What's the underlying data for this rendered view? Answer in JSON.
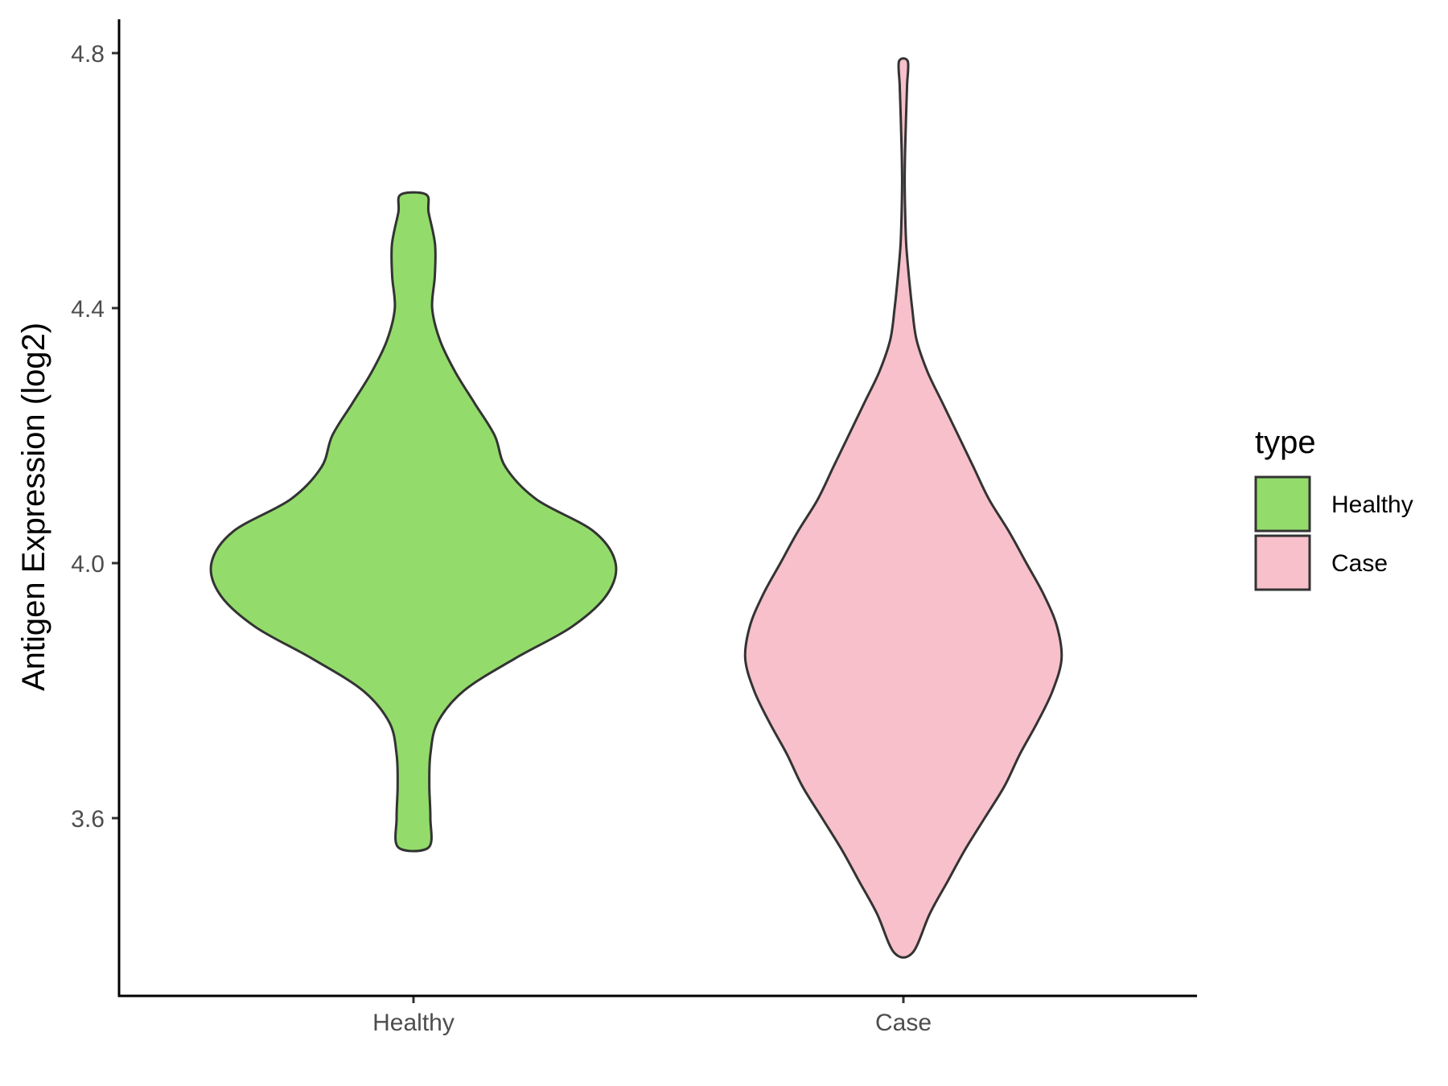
{
  "chart_data": {
    "type": "violin",
    "title": "",
    "xlabel": "",
    "ylabel": "Antigen Expression (log2)",
    "ylim": [
      3.3,
      4.86
    ],
    "yticks": [
      3.6,
      4.0,
      4.4,
      4.8
    ],
    "ytick_labels": [
      "3.6",
      "4.0",
      "4.4",
      "4.8"
    ],
    "categories": [
      "Healthy",
      "Case"
    ],
    "grid": false,
    "legend": {
      "title": "type",
      "placement": "right",
      "entries": [
        "Healthy",
        "Case"
      ]
    },
    "series": [
      {
        "name": "Healthy",
        "color": "#93dc6b",
        "min": 3.554,
        "max": 4.578,
        "density": [
          [
            3.554,
            0.069
          ],
          [
            3.6,
            0.077
          ],
          [
            3.65,
            0.072
          ],
          [
            3.7,
            0.077
          ],
          [
            3.75,
            0.11
          ],
          [
            3.8,
            0.23
          ],
          [
            3.85,
            0.46
          ],
          [
            3.9,
            0.72
          ],
          [
            3.95,
            0.88
          ],
          [
            4.0,
            0.92
          ],
          [
            4.05,
            0.82
          ],
          [
            4.1,
            0.56
          ],
          [
            4.15,
            0.42
          ],
          [
            4.2,
            0.37
          ],
          [
            4.25,
            0.28
          ],
          [
            4.3,
            0.19
          ],
          [
            4.35,
            0.12
          ],
          [
            4.4,
            0.085
          ],
          [
            4.45,
            0.097
          ],
          [
            4.5,
            0.098
          ],
          [
            4.55,
            0.069
          ],
          [
            4.578,
            0.058
          ]
        ]
      },
      {
        "name": "Case",
        "color": "#f7c0cb",
        "min": 3.389,
        "max": 4.787,
        "density": [
          [
            3.389,
            0.042
          ],
          [
            3.45,
            0.12
          ],
          [
            3.5,
            0.2
          ],
          [
            3.55,
            0.28
          ],
          [
            3.6,
            0.37
          ],
          [
            3.65,
            0.46
          ],
          [
            3.7,
            0.53
          ],
          [
            3.75,
            0.61
          ],
          [
            3.8,
            0.68
          ],
          [
            3.85,
            0.72
          ],
          [
            3.9,
            0.7
          ],
          [
            3.95,
            0.64
          ],
          [
            4.0,
            0.56
          ],
          [
            4.05,
            0.48
          ],
          [
            4.1,
            0.39
          ],
          [
            4.15,
            0.32
          ],
          [
            4.2,
            0.25
          ],
          [
            4.25,
            0.18
          ],
          [
            4.3,
            0.11
          ],
          [
            4.35,
            0.06
          ],
          [
            4.4,
            0.04
          ],
          [
            4.45,
            0.025
          ],
          [
            4.5,
            0.013
          ],
          [
            4.55,
            0.008
          ],
          [
            4.6,
            0.006
          ],
          [
            4.65,
            0.008
          ],
          [
            4.7,
            0.012
          ],
          [
            4.75,
            0.017
          ],
          [
            4.787,
            0.02
          ]
        ]
      }
    ]
  }
}
